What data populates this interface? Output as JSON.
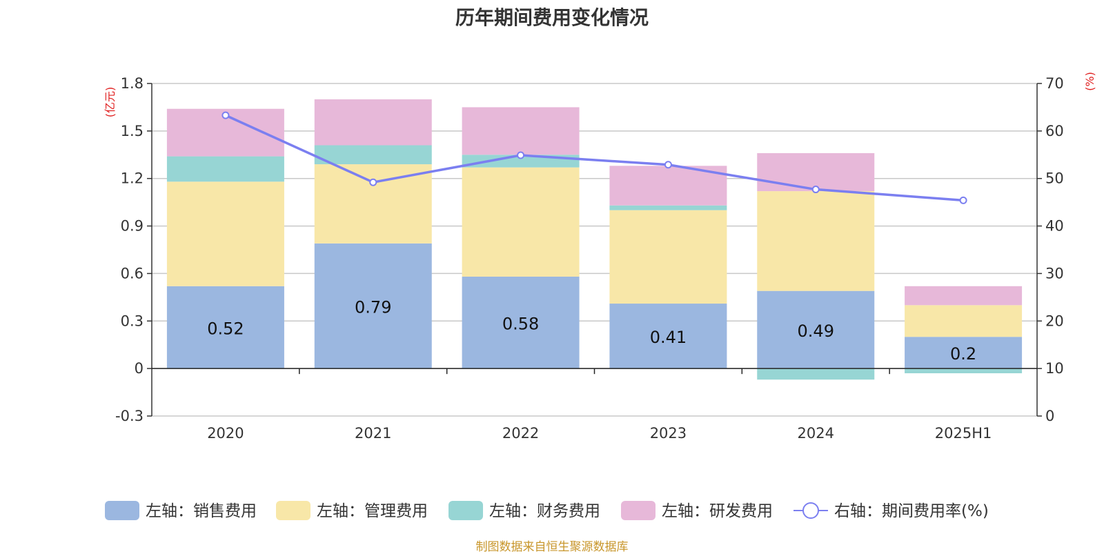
{
  "chart_data": {
    "type": "bar",
    "title": "历年期间费用变化情况",
    "categories": [
      "2020",
      "2021",
      "2022",
      "2023",
      "2024",
      "2025H1"
    ],
    "left_axis": {
      "unit": "(亿元)",
      "ylim": [
        -0.3,
        1.8
      ],
      "ticks": [
        -0.3,
        0,
        0.3,
        0.6,
        0.9,
        1.2,
        1.5,
        1.8
      ]
    },
    "right_axis": {
      "unit": "(%)",
      "ylim": [
        0,
        70
      ],
      "ticks": [
        0,
        10,
        20,
        30,
        40,
        50,
        60,
        70
      ]
    },
    "series": [
      {
        "name": "左轴：销售费用",
        "axis": "left",
        "kind": "stacked-bar",
        "color": "#9bb7e0",
        "values": [
          0.52,
          0.79,
          0.58,
          0.41,
          0.49,
          0.2
        ],
        "labels": [
          "0.52",
          "0.79",
          "0.58",
          "0.41",
          "0.49",
          "0.2"
        ]
      },
      {
        "name": "左轴：管理费用",
        "axis": "left",
        "kind": "stacked-bar",
        "color": "#f8e7a8",
        "values": [
          0.66,
          0.5,
          0.69,
          0.59,
          0.63,
          0.2
        ]
      },
      {
        "name": "左轴：财务费用",
        "axis": "left",
        "kind": "stacked-bar",
        "color": "#97d5d4",
        "values": [
          0.16,
          0.12,
          0.08,
          0.03,
          -0.07,
          -0.03
        ]
      },
      {
        "name": "左轴：研发费用",
        "axis": "left",
        "kind": "stacked-bar",
        "color": "#e7b8d9",
        "values": [
          0.3,
          0.29,
          0.3,
          0.25,
          0.24,
          0.12
        ]
      },
      {
        "name": "右轴：期间费用率(%)",
        "axis": "right",
        "kind": "line",
        "color": "#7b7ff0",
        "values": [
          63.3,
          49.2,
          54.9,
          52.9,
          47.7,
          45.4
        ]
      }
    ],
    "legend_position": "bottom",
    "grid": true
  },
  "source_note": "制图数据来自恒生聚源数据库"
}
